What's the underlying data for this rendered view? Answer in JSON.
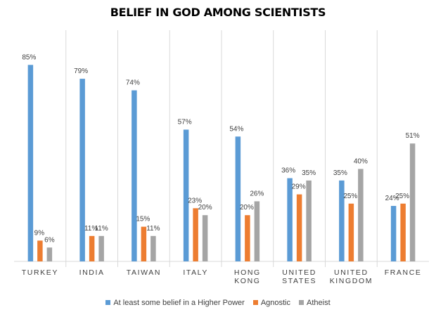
{
  "chart_data": {
    "type": "bar",
    "title": "BELIEF IN GOD AMONG SCIENTISTS",
    "categories": [
      [
        "TURKEY"
      ],
      [
        "INDIA"
      ],
      [
        "TAIWAN"
      ],
      [
        "ITALY"
      ],
      [
        "HONG",
        "KONG"
      ],
      [
        "UNITED",
        "STATES"
      ],
      [
        "UNITED",
        "KINGDOM"
      ],
      [
        "FRANCE"
      ]
    ],
    "series": [
      {
        "name": "At least some belief in a Higher Power",
        "color": "#5B9BD5",
        "values": [
          85,
          79,
          74,
          57,
          54,
          36,
          35,
          24
        ],
        "labels": [
          "85%",
          "79%",
          "74%",
          "57%",
          "54%",
          "36%",
          "35%",
          "24%"
        ]
      },
      {
        "name": "Agnostic",
        "color": "#ED7D31",
        "values": [
          9,
          11,
          15,
          23,
          20,
          29,
          25,
          25
        ],
        "labels": [
          "9%",
          "11%",
          "15%",
          "23%",
          "20%",
          "29%",
          "25%",
          "25%"
        ]
      },
      {
        "name": "Atheist",
        "color": "#A5A5A5",
        "values": [
          6,
          11,
          11,
          20,
          26,
          35,
          40,
          51
        ],
        "labels": [
          "6%",
          "11%",
          "11%",
          "20%",
          "26%",
          "35%",
          "40%",
          "51%"
        ]
      }
    ],
    "ylim": [
      0,
      100
    ],
    "grid": false,
    "legend_position": "bottom"
  }
}
